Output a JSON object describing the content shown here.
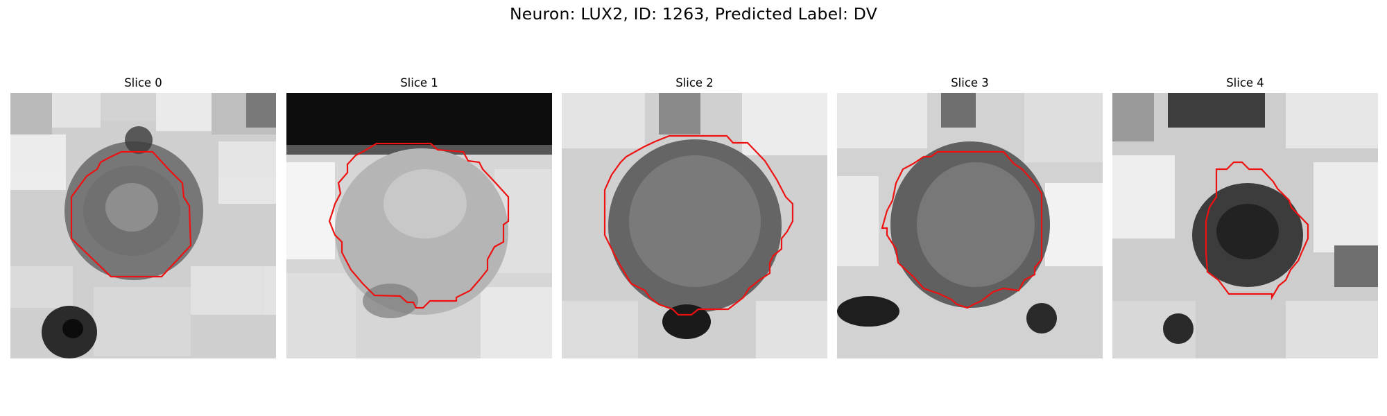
{
  "figure": {
    "title": "Neuron: LUX2, ID: 1263, Predicted Label: DV",
    "contour_color": "#ee1111",
    "panels": [
      {
        "title": "Slice 0"
      },
      {
        "title": "Slice 1"
      },
      {
        "title": "Slice 2"
      },
      {
        "title": "Slice 3"
      },
      {
        "title": "Slice 4"
      }
    ]
  }
}
